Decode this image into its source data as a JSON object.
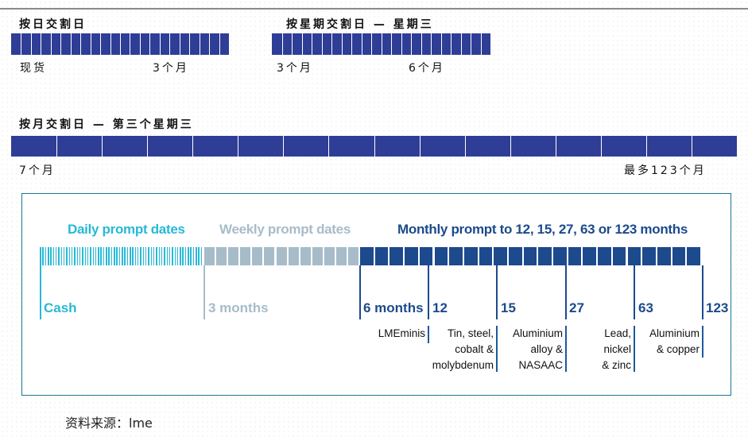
{
  "chinese_schedule": {
    "daily": {
      "title": "按日交割日",
      "labels": [
        "现货",
        "3个月"
      ]
    },
    "weekly": {
      "title": "按星期交割日 — 星期三",
      "labels": [
        "3个月",
        "6个月"
      ]
    },
    "monthly": {
      "title": "按月交割日 — 第三个星期三",
      "labels": [
        "7个月",
        "最多123个月"
      ]
    }
  },
  "lme_diagram": {
    "headers": {
      "daily": "Daily prompt dates",
      "weekly": "Weekly prompt dates",
      "monthly": "Monthly prompt to 12, 15, 27, 63 or 123 months"
    },
    "markers": [
      "Cash",
      "3 months",
      "6 months",
      "12",
      "15",
      "27",
      "63",
      "123"
    ],
    "metals": [
      "LMEminis",
      "Tin, steel,\ncobalt &\nmolybdenum",
      "Aluminium\nalloy &\nNASAAC",
      "Lead,\nnickel\n& zinc",
      "Aluminium\n& copper"
    ],
    "colors": {
      "daily": "#27b9d6",
      "weekly": "#a7bcc9",
      "monthly": "#1c4a8c",
      "bar": "#2e3d96"
    }
  },
  "source": "资料来源：lme"
}
